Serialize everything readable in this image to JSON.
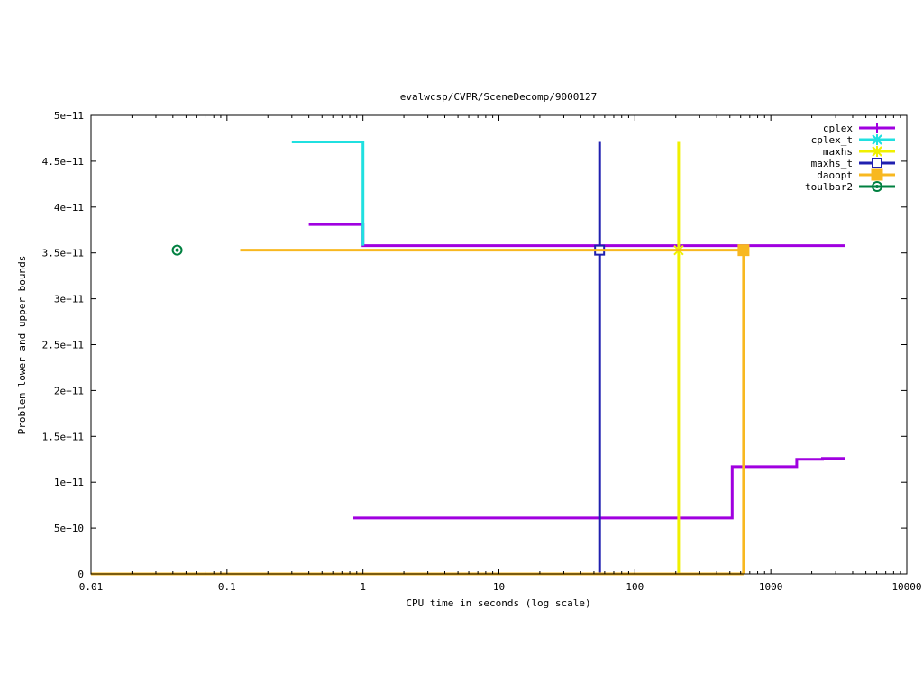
{
  "chart_data": {
    "type": "line",
    "title": "evalwcsp/CVPR/SceneDecomp/9000127",
    "xlabel": "CPU time in seconds (log scale)",
    "ylabel": "Problem lower and upper bounds",
    "xscale": "log",
    "xlim": [
      0.01,
      10000
    ],
    "ylim": [
      0,
      500000000000
    ],
    "xticks": [
      0.01,
      0.1,
      1,
      10,
      100,
      1000,
      10000
    ],
    "xtick_labels": [
      "0.01",
      "0.1",
      "1",
      "10",
      "100",
      "1000",
      "10000"
    ],
    "yticks": [
      0,
      50000000000,
      100000000000,
      150000000000,
      200000000000,
      250000000000,
      300000000000,
      350000000000,
      400000000000,
      450000000000,
      500000000000
    ],
    "ytick_labels": [
      "0",
      "5e+10",
      "1e+11",
      "1.5e+11",
      "2e+11",
      "2.5e+11",
      "3e+11",
      "3.5e+11",
      "4e+11",
      "4.5e+11",
      "5e+11"
    ],
    "grid": false,
    "legend_position": "top-right",
    "series": [
      {
        "name": "cplex",
        "color": "#a000e0",
        "marker": "plus",
        "lines": [
          [
            [
              0.4,
              381000000000
            ],
            [
              1.0,
              381000000000
            ],
            [
              1.0,
              358000000000
            ],
            [
              3500,
              358000000000
            ]
          ],
          [
            [
              0.85,
              61000000000
            ],
            [
              520,
              61000000000
            ],
            [
              520,
              117000000000
            ],
            [
              1550,
              117000000000
            ],
            [
              1550,
              125000000000
            ],
            [
              2400,
              125000000000
            ],
            [
              2400,
              126000000000
            ],
            [
              3500,
              126000000000
            ]
          ]
        ],
        "markers": []
      },
      {
        "name": "cplex_t",
        "color": "#20e0e0",
        "marker": "star",
        "lines": [
          [
            [
              0.3,
              471000000000
            ],
            [
              1.0,
              471000000000
            ],
            [
              1.0,
              358000000000
            ]
          ]
        ],
        "markers": []
      },
      {
        "name": "maxhs",
        "color": "#f0f000",
        "marker": "star",
        "lines": [
          [
            [
              210,
              471000000000
            ],
            [
              210,
              0
            ]
          ]
        ],
        "markers": [
          [
            210,
            353000000000
          ]
        ]
      },
      {
        "name": "maxhs_t",
        "color": "#2020b0",
        "marker": "open-square",
        "lines": [
          [
            [
              55,
              471000000000
            ],
            [
              55,
              0
            ]
          ]
        ],
        "markers": [
          [
            55,
            353000000000
          ]
        ]
      },
      {
        "name": "daoopt",
        "color": "#f8b820",
        "marker": "filled-square",
        "lines": [
          [
            [
              0.125,
              353000000000
            ],
            [
              630,
              353000000000
            ]
          ],
          [
            [
              0.01,
              0
            ],
            [
              630,
              0
            ]
          ],
          [
            [
              630,
              353000000000
            ],
            [
              630,
              0
            ]
          ]
        ],
        "markers": [
          [
            630,
            353000000000
          ]
        ]
      },
      {
        "name": "toulbar2",
        "color": "#008040",
        "marker": "circle",
        "lines": [],
        "markers": [
          [
            0.043,
            353000000000
          ]
        ]
      }
    ]
  }
}
